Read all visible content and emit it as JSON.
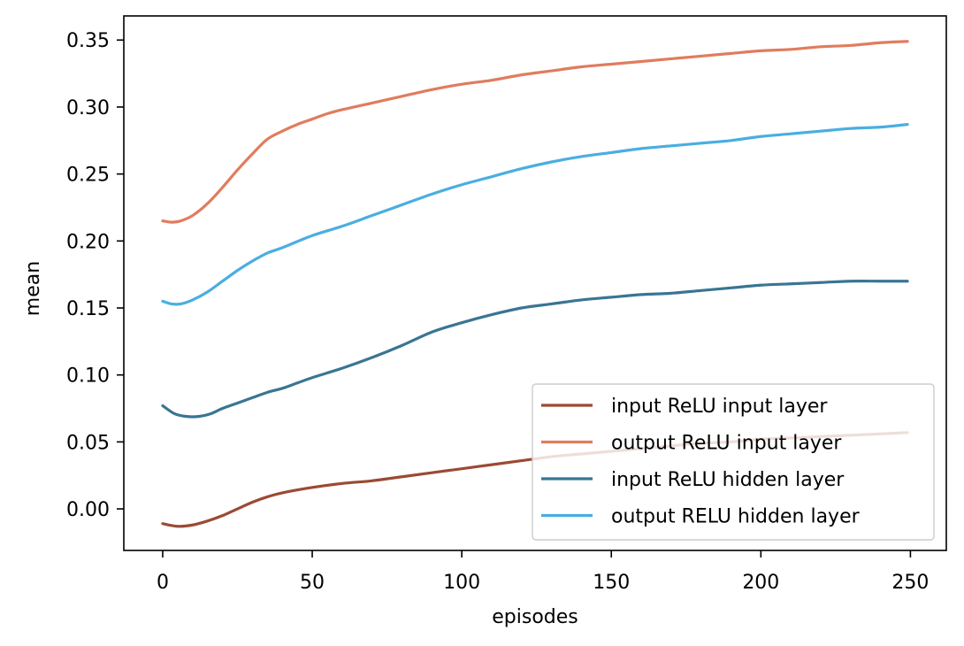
{
  "chart_data": {
    "type": "line",
    "title": "",
    "xlabel": "episodes",
    "ylabel": "mean",
    "xlim": [
      -13,
      262
    ],
    "ylim": [
      -0.031,
      0.368
    ],
    "xticks": [
      0,
      50,
      100,
      150,
      200,
      250
    ],
    "xtick_labels": [
      "0",
      "50",
      "100",
      "150",
      "200",
      "250"
    ],
    "yticks": [
      0.0,
      0.05,
      0.1,
      0.15,
      0.2,
      0.25,
      0.3,
      0.35
    ],
    "ytick_labels": [
      "0.00",
      "0.05",
      "0.10",
      "0.15",
      "0.20",
      "0.25",
      "0.30",
      "0.35"
    ],
    "grid": false,
    "legend_position": "lower-right",
    "series": [
      {
        "name": "input ReLU input layer",
        "color": "#9b4a33",
        "x": [
          0,
          5,
          10,
          15,
          20,
          25,
          30,
          35,
          40,
          50,
          60,
          70,
          80,
          90,
          100,
          110,
          120,
          130,
          140,
          150,
          160,
          170,
          180,
          190,
          200,
          210,
          220,
          230,
          240,
          249
        ],
        "y": [
          -0.011,
          -0.013,
          -0.012,
          -0.009,
          -0.005,
          0.0,
          0.005,
          0.009,
          0.012,
          0.016,
          0.019,
          0.021,
          0.024,
          0.027,
          0.03,
          0.033,
          0.036,
          0.039,
          0.041,
          0.043,
          0.045,
          0.047,
          0.049,
          0.05,
          0.052,
          0.053,
          0.054,
          0.055,
          0.056,
          0.057
        ]
      },
      {
        "name": "output ReLU input layer",
        "color": "#e07c5e",
        "x": [
          0,
          3,
          6,
          10,
          15,
          20,
          25,
          30,
          35,
          40,
          45,
          50,
          55,
          60,
          70,
          80,
          90,
          100,
          110,
          120,
          130,
          140,
          150,
          160,
          170,
          180,
          190,
          200,
          210,
          220,
          230,
          240,
          249
        ],
        "y": [
          0.215,
          0.214,
          0.215,
          0.219,
          0.228,
          0.24,
          0.253,
          0.265,
          0.276,
          0.282,
          0.287,
          0.291,
          0.295,
          0.298,
          0.303,
          0.308,
          0.313,
          0.317,
          0.32,
          0.324,
          0.327,
          0.33,
          0.332,
          0.334,
          0.336,
          0.338,
          0.34,
          0.342,
          0.343,
          0.345,
          0.346,
          0.348,
          0.349
        ]
      },
      {
        "name": "input ReLU hidden layer",
        "color": "#3a7593",
        "x": [
          0,
          4,
          8,
          12,
          16,
          20,
          25,
          30,
          35,
          40,
          45,
          50,
          60,
          70,
          80,
          90,
          100,
          110,
          120,
          130,
          140,
          150,
          160,
          170,
          180,
          190,
          200,
          210,
          220,
          230,
          240,
          249
        ],
        "y": [
          0.077,
          0.071,
          0.069,
          0.069,
          0.071,
          0.075,
          0.079,
          0.083,
          0.087,
          0.09,
          0.094,
          0.098,
          0.105,
          0.113,
          0.122,
          0.132,
          0.139,
          0.145,
          0.15,
          0.153,
          0.156,
          0.158,
          0.16,
          0.161,
          0.163,
          0.165,
          0.167,
          0.168,
          0.169,
          0.17,
          0.17,
          0.17
        ]
      },
      {
        "name": "output RELU hidden layer",
        "color": "#4aaee0",
        "x": [
          0,
          3,
          6,
          10,
          15,
          20,
          25,
          30,
          35,
          40,
          50,
          60,
          70,
          80,
          90,
          100,
          110,
          120,
          130,
          140,
          150,
          160,
          170,
          180,
          190,
          200,
          210,
          220,
          230,
          240,
          249
        ],
        "y": [
          0.155,
          0.153,
          0.153,
          0.156,
          0.162,
          0.17,
          0.178,
          0.185,
          0.191,
          0.195,
          0.204,
          0.211,
          0.219,
          0.227,
          0.235,
          0.242,
          0.248,
          0.254,
          0.259,
          0.263,
          0.266,
          0.269,
          0.271,
          0.273,
          0.275,
          0.278,
          0.28,
          0.282,
          0.284,
          0.285,
          0.287
        ]
      }
    ]
  }
}
